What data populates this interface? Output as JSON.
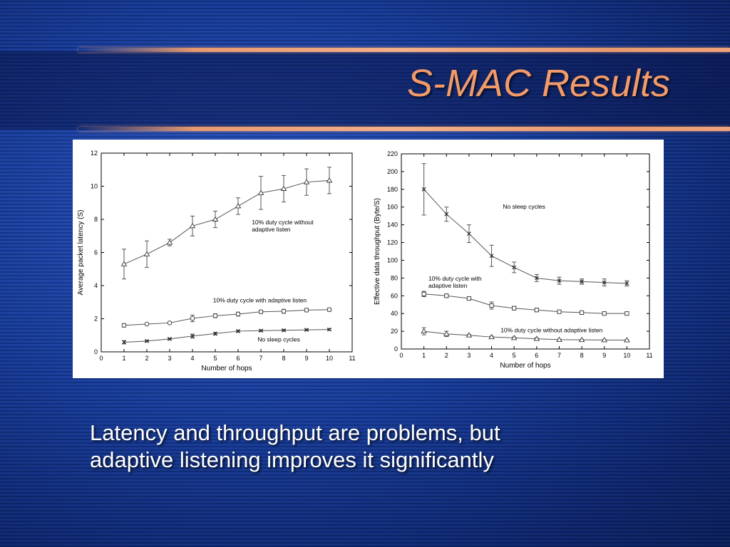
{
  "slide": {
    "title": "S-MAC Results",
    "caption_lines": [
      "Latency and throughput are problems, but",
      "adaptive listening improves it significantly"
    ]
  },
  "chart_data": [
    {
      "type": "line",
      "xlabel": "Number of hops",
      "ylabel": "Average packet latency (S)",
      "xlim": [
        0,
        11
      ],
      "ylim": [
        0,
        12
      ],
      "xticks": [
        0,
        1,
        2,
        3,
        4,
        5,
        6,
        7,
        8,
        9,
        10,
        11
      ],
      "yticks": [
        0,
        2,
        4,
        6,
        8,
        10,
        12
      ],
      "grid": false,
      "x": [
        1,
        2,
        3,
        4,
        5,
        6,
        7,
        8,
        9,
        10
      ],
      "series": [
        {
          "name": "10% duty cycle without adaptive listen",
          "marker": "triangle",
          "values": [
            5.3,
            5.9,
            6.6,
            7.6,
            8.0,
            8.8,
            9.6,
            9.85,
            10.25,
            10.35
          ],
          "error": [
            0.9,
            0.8,
            0.2,
            0.6,
            0.5,
            0.5,
            1.0,
            0.8,
            0.8,
            0.8
          ],
          "label": {
            "lines": [
              "10% duty cycle without",
              "adaptive listen"
            ],
            "x": 6.6,
            "y": 7.7
          }
        },
        {
          "name": "10% duty cycle with adaptive listen",
          "marker": "circle",
          "values": [
            1.6,
            1.68,
            1.75,
            2.02,
            2.18,
            2.28,
            2.42,
            2.45,
            2.52,
            2.55
          ],
          "error": [
            0.1,
            0.05,
            0.05,
            0.2,
            0.12,
            0.12,
            0.1,
            0.12,
            0.1,
            0.1
          ],
          "label": {
            "lines": [
              "10% duty cycle with adaptive listen"
            ],
            "x": 4.9,
            "y": 3.0
          }
        },
        {
          "name": "No sleep cycles",
          "marker": "x",
          "values": [
            0.58,
            0.65,
            0.78,
            0.95,
            1.1,
            1.25,
            1.28,
            1.3,
            1.33,
            1.35
          ],
          "error": [
            0.1,
            0.05,
            0.05,
            0.12,
            0.08,
            0.06,
            0.05,
            0.05,
            0.05,
            0.05
          ],
          "label": {
            "lines": [
              "No sleep cycles"
            ],
            "x": 6.85,
            "y": 0.62
          }
        }
      ]
    },
    {
      "type": "line",
      "xlabel": "Number of hops",
      "ylabel": "Effective data throughput (Byte/S)",
      "xlim": [
        0,
        11
      ],
      "ylim": [
        0,
        220
      ],
      "xticks": [
        0,
        1,
        2,
        3,
        4,
        5,
        6,
        7,
        8,
        9,
        10,
        11
      ],
      "yticks": [
        0,
        20,
        40,
        60,
        80,
        100,
        120,
        140,
        160,
        180,
        200,
        220
      ],
      "grid": false,
      "x": [
        1,
        2,
        3,
        4,
        5,
        6,
        7,
        8,
        9,
        10
      ],
      "series": [
        {
          "name": "No sleep cycles",
          "marker": "x",
          "values": [
            180,
            152,
            130,
            105,
            92,
            80,
            77,
            76,
            75,
            74
          ],
          "error": [
            29,
            8,
            10,
            12,
            6,
            4,
            4,
            3,
            4,
            3
          ],
          "label": {
            "lines": [
              "No sleep cycles"
            ],
            "x": 4.5,
            "y": 158
          }
        },
        {
          "name": "10% duty cycle with adaptive listen",
          "marker": "square",
          "values": [
            62,
            60,
            57,
            49,
            46,
            44,
            42,
            41,
            40,
            40
          ],
          "error": [
            3,
            2,
            2,
            4,
            2,
            2,
            1.5,
            1.5,
            1.5,
            1.5
          ],
          "label": {
            "lines": [
              "10% duty cycle with",
              "adaptive listen"
            ],
            "x": 1.2,
            "y": 77
          }
        },
        {
          "name": "10% duty cycle without adaptive listen",
          "marker": "triangle",
          "values": [
            20,
            17,
            15.5,
            13.5,
            12.5,
            11.5,
            10.5,
            10.3,
            10.1,
            10
          ],
          "error": [
            4,
            3,
            1,
            1,
            1,
            1,
            0.5,
            0.5,
            0.5,
            0.5
          ],
          "label": {
            "lines": [
              "10% duty cycle without adaptive listen"
            ],
            "x": 4.4,
            "y": 19
          }
        }
      ]
    }
  ]
}
